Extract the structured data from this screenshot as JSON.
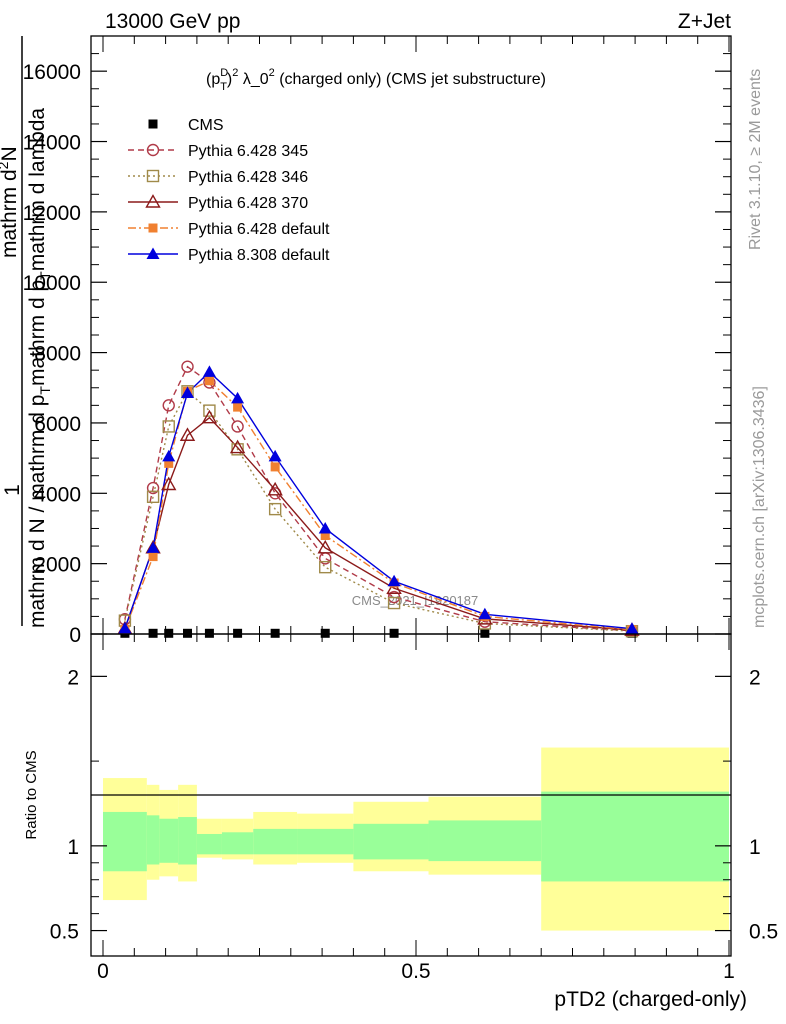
{
  "header": {
    "energy_label": "13000 GeV pp",
    "process_label": "Z+Jet"
  },
  "side_text": {
    "rivet": "Rivet 3.1.10, ≥ 2M events",
    "mcplots": "mcplots.cern.ch [arXiv:1306.3436]"
  },
  "watermark": "CMS_2021_I1920187",
  "colors": {
    "cms": "#000000",
    "p345": "#b03a48",
    "p346": "#a08a4a",
    "p370": "#8b1a1a",
    "p6def": "#f08030",
    "p8def": "#0000dd",
    "band_outer": "#ffff99",
    "band_inner": "#99ff99"
  },
  "chart_data": [
    {
      "type": "line",
      "title_parts": {
        "p": "(p",
        "sup": "D",
        "sub": "T",
        "rest": ")",
        "sup2": "2",
        "lambda": " λ_0",
        "sup3": "2",
        "tail": " (charged only) (CMS jet substructure)"
      },
      "ylabel_parts": {
        "one": "1",
        "den": "mathrm d N / mathrm d p_{T}mathrm d p_{T}mathrm d lambda",
        "num": "mathrm d^{2}N"
      },
      "ylabel_display": {
        "one": "1",
        "den_a": "mathrm d N",
        "den_b": " / mathrm d p",
        "den_c": "mathrm d p",
        "den_d": "mathrm d lambda",
        "num_a": "mathrm d",
        "num_b": "N",
        "sub_t": "T",
        "sup_2": "2"
      },
      "xlim": [
        0,
        1
      ],
      "ylim": [
        0,
        17000
      ],
      "yticks": [
        0,
        2000,
        4000,
        6000,
        8000,
        10000,
        12000,
        14000,
        16000
      ],
      "ytick_labels": [
        "0",
        "2000",
        "4000",
        "6000",
        "8000",
        "10000",
        "12000",
        "14000",
        "16000"
      ],
      "legend_placement": "top-left",
      "series": [
        {
          "name": "CMS",
          "key": "cms",
          "marker": "square-filled",
          "line": "none",
          "x": [
            0.035,
            0.08,
            0.105,
            0.135,
            0.17,
            0.215,
            0.275,
            0.355,
            0.465,
            0.61,
            0.845
          ],
          "y": [
            20,
            20,
            20,
            20,
            20,
            20,
            20,
            20,
            20,
            20,
            20
          ]
        },
        {
          "name": "Pythia 6.428 345",
          "key": "p345",
          "marker": "circle-open",
          "line": "dashed",
          "x": [
            0.035,
            0.08,
            0.105,
            0.135,
            0.17,
            0.215,
            0.275,
            0.355,
            0.465,
            0.61,
            0.845
          ],
          "y": [
            420,
            4150,
            6500,
            7600,
            7150,
            5900,
            4000,
            2150,
            1050,
            350,
            90
          ]
        },
        {
          "name": "Pythia 6.428 346",
          "key": "p346",
          "marker": "square-open",
          "line": "dotted",
          "x": [
            0.035,
            0.08,
            0.105,
            0.135,
            0.17,
            0.215,
            0.275,
            0.355,
            0.465,
            0.61,
            0.845
          ],
          "y": [
            380,
            3900,
            5900,
            6900,
            6350,
            5250,
            3550,
            1900,
            880,
            300,
            80
          ]
        },
        {
          "name": "Pythia 6.428 370",
          "key": "p370",
          "marker": "triangle-open",
          "line": "solid",
          "x": [
            0.035,
            0.08,
            0.105,
            0.135,
            0.17,
            0.215,
            0.275,
            0.355,
            0.465,
            0.61,
            0.845
          ],
          "y": [
            150,
            2450,
            4250,
            5650,
            6150,
            5300,
            4100,
            2450,
            1300,
            430,
            110
          ]
        },
        {
          "name": "Pythia 6.428 default",
          "key": "p6def",
          "marker": "square-filled",
          "line": "dashdot",
          "x": [
            0.035,
            0.08,
            0.105,
            0.135,
            0.17,
            0.215,
            0.275,
            0.355,
            0.465,
            0.61,
            0.845
          ],
          "y": [
            130,
            2200,
            4850,
            6900,
            7200,
            6450,
            4750,
            2800,
            1450,
            500,
            120
          ]
        },
        {
          "name": "Pythia 8.308 default",
          "key": "p8def",
          "marker": "triangle-filled",
          "line": "solid",
          "x": [
            0.035,
            0.08,
            0.105,
            0.135,
            0.17,
            0.215,
            0.275,
            0.355,
            0.465,
            0.61,
            0.845
          ],
          "y": [
            160,
            2450,
            5050,
            6850,
            7450,
            6700,
            5050,
            3000,
            1500,
            560,
            150
          ]
        }
      ]
    },
    {
      "type": "area",
      "ylabel": "Ratio to CMS",
      "xlabel": "pTD2 (charged-only)",
      "xlim": [
        0,
        1
      ],
      "ylim": [
        0.35,
        2.25
      ],
      "yticks": [
        0.5,
        1,
        2
      ],
      "ytick_labels": [
        "0.5",
        "1",
        "2"
      ],
      "xticks": [
        0,
        0.5,
        1
      ],
      "xtick_labels": [
        "0",
        "0.5",
        "1"
      ],
      "bins": [
        0,
        0.07,
        0.09,
        0.12,
        0.15,
        0.19,
        0.24,
        0.31,
        0.4,
        0.52,
        0.7,
        1.0
      ],
      "outer_lo": [
        0.68,
        0.8,
        0.82,
        0.79,
        0.93,
        0.92,
        0.89,
        0.9,
        0.85,
        0.83,
        0.5
      ],
      "outer_hi": [
        1.4,
        1.36,
        1.33,
        1.36,
        1.16,
        1.16,
        1.2,
        1.19,
        1.26,
        1.29,
        1.58
      ],
      "inner_lo": [
        0.85,
        0.89,
        0.9,
        0.89,
        0.95,
        0.95,
        0.95,
        0.95,
        0.92,
        0.91,
        0.79
      ],
      "inner_hi": [
        1.2,
        1.18,
        1.16,
        1.17,
        1.07,
        1.08,
        1.1,
        1.1,
        1.13,
        1.15,
        1.32
      ]
    }
  ]
}
